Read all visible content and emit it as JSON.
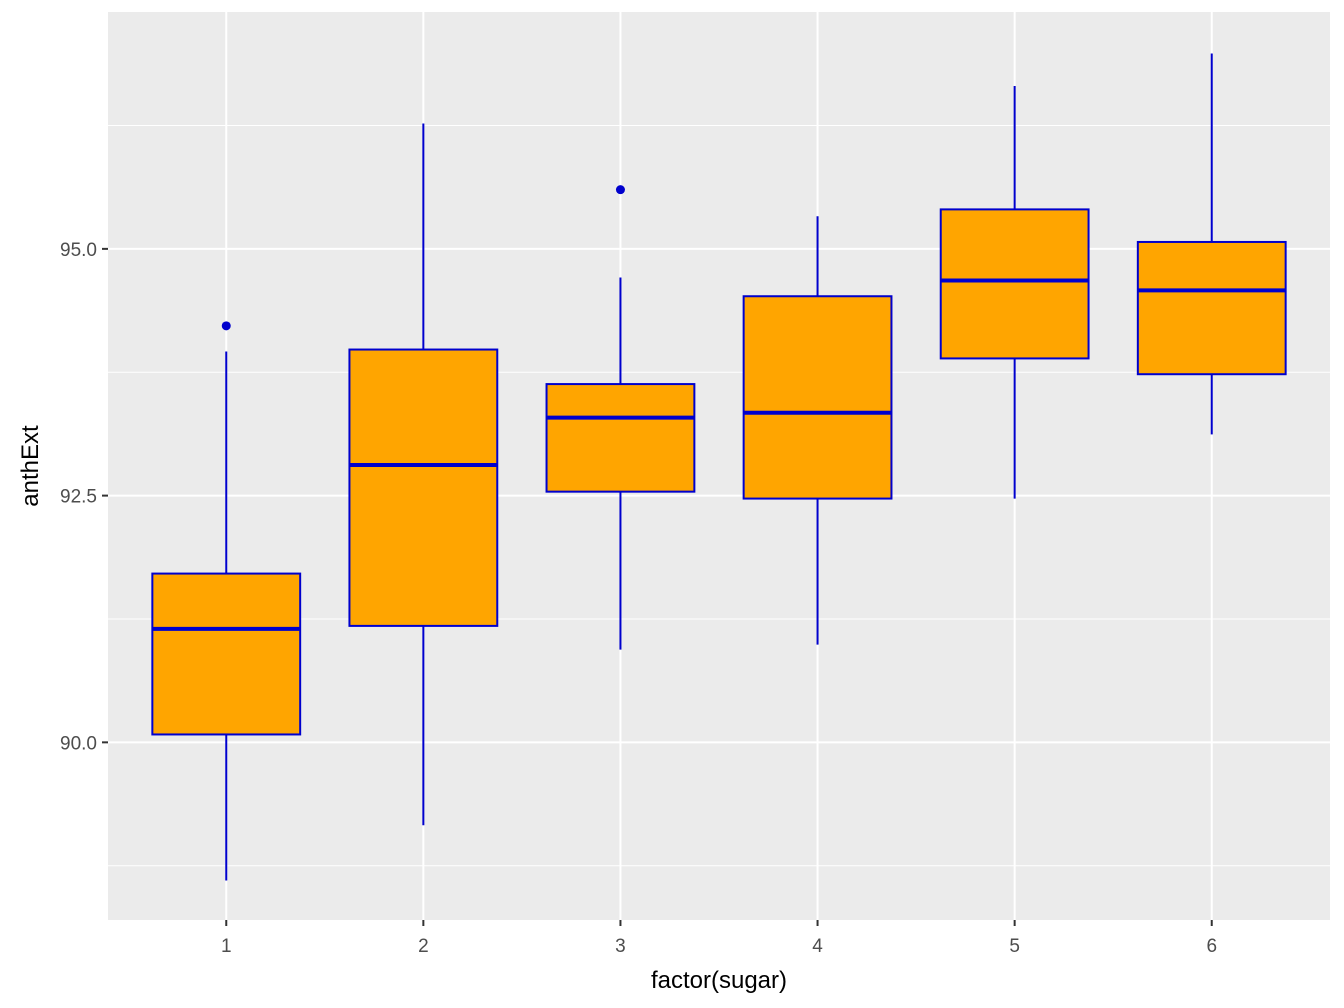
{
  "chart_data": {
    "type": "boxplot",
    "title": "",
    "xlabel": "factor(sugar)",
    "ylabel": "anthExt",
    "categories": [
      "1",
      "2",
      "3",
      "4",
      "5",
      "6"
    ],
    "ylim": [
      88.2,
      97.4
    ],
    "yticks": [
      90.0,
      92.5,
      95.0
    ],
    "ytick_labels": [
      "90.0",
      "92.5",
      "95.0"
    ],
    "minor_yticks": [
      88.75,
      91.25,
      93.75,
      96.25
    ],
    "grid": true,
    "boxes": [
      {
        "category": "1",
        "whisker_low": 88.6,
        "q1": 90.08,
        "median": 91.15,
        "q3": 91.71,
        "whisker_high": 93.96,
        "outliers": [
          94.22
        ]
      },
      {
        "category": "2",
        "whisker_low": 89.16,
        "q1": 91.18,
        "median": 92.81,
        "q3": 93.98,
        "whisker_high": 96.27,
        "outliers": []
      },
      {
        "category": "3",
        "whisker_low": 90.94,
        "q1": 92.54,
        "median": 93.29,
        "q3": 93.63,
        "whisker_high": 94.71,
        "outliers": [
          95.6
        ]
      },
      {
        "category": "4",
        "whisker_low": 90.99,
        "q1": 92.47,
        "median": 93.34,
        "q3": 94.52,
        "whisker_high": 95.33,
        "outliers": []
      },
      {
        "category": "5",
        "whisker_low": 92.47,
        "q1": 93.89,
        "median": 94.68,
        "q3": 95.4,
        "whisker_high": 96.65,
        "outliers": []
      },
      {
        "category": "6",
        "whisker_low": 93.12,
        "q1": 93.73,
        "median": 94.58,
        "q3": 95.07,
        "whisker_high": 96.98,
        "outliers": []
      }
    ],
    "colors": {
      "fill": "#FFA500",
      "line": "#0000CD",
      "panel": "#EBEBEB",
      "grid": "#FFFFFF",
      "tick_text": "#4D4D4D",
      "title_text": "#000000"
    }
  }
}
